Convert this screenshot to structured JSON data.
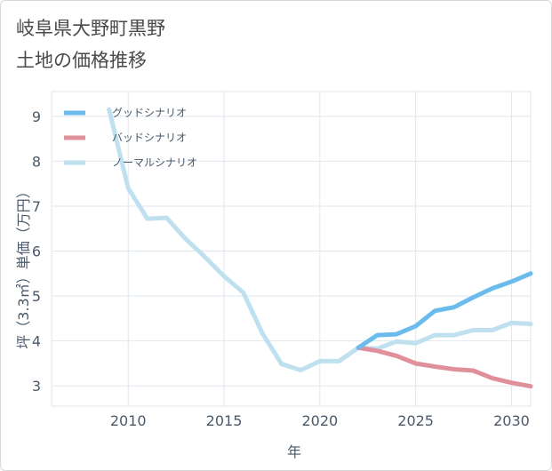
{
  "title": "岐阜県大野町黒野\n土地の価格推移",
  "chart_data": {
    "type": "line",
    "xlabel": "年",
    "ylabel": "坪（3.3㎡）単価（万円）",
    "xlim": [
      2006,
      2031
    ],
    "ylim": [
      2.55,
      9.55
    ],
    "xticks": [
      2010,
      2015,
      2020,
      2025,
      2030
    ],
    "yticks": [
      3,
      4,
      5,
      6,
      7,
      8,
      9
    ],
    "grid": true,
    "legend_position": "top-left",
    "series": [
      {
        "name": "グッドシナリオ",
        "color": "#6bbcec",
        "x": [
          2022,
          2023,
          2024,
          2025,
          2026,
          2027,
          2028,
          2029,
          2030,
          2031
        ],
        "y": [
          3.85,
          4.13,
          4.15,
          4.33,
          4.67,
          4.75,
          4.97,
          5.17,
          5.32,
          5.5
        ]
      },
      {
        "name": "バッドシナリオ",
        "color": "#e0909a",
        "x": [
          2022,
          2023,
          2024,
          2025,
          2026,
          2027,
          2028,
          2029,
          2030,
          2031
        ],
        "y": [
          3.85,
          3.78,
          3.67,
          3.5,
          3.43,
          3.37,
          3.34,
          3.17,
          3.07,
          2.99
        ]
      },
      {
        "name": "ノーマルシナリオ",
        "color": "#bfe0ef",
        "x": [
          2009,
          2010,
          2011,
          2012,
          2013,
          2014,
          2015,
          2016,
          2017,
          2018,
          2019,
          2020,
          2021,
          2022,
          2023,
          2024,
          2025,
          2026,
          2027,
          2028,
          2029,
          2030,
          2031
        ],
        "y": [
          9.15,
          7.4,
          6.72,
          6.74,
          6.27,
          5.87,
          5.44,
          5.08,
          4.17,
          3.49,
          3.35,
          3.55,
          3.55,
          3.85,
          3.83,
          3.99,
          3.95,
          4.13,
          4.13,
          4.24,
          4.24,
          4.4,
          4.38
        ]
      }
    ]
  }
}
